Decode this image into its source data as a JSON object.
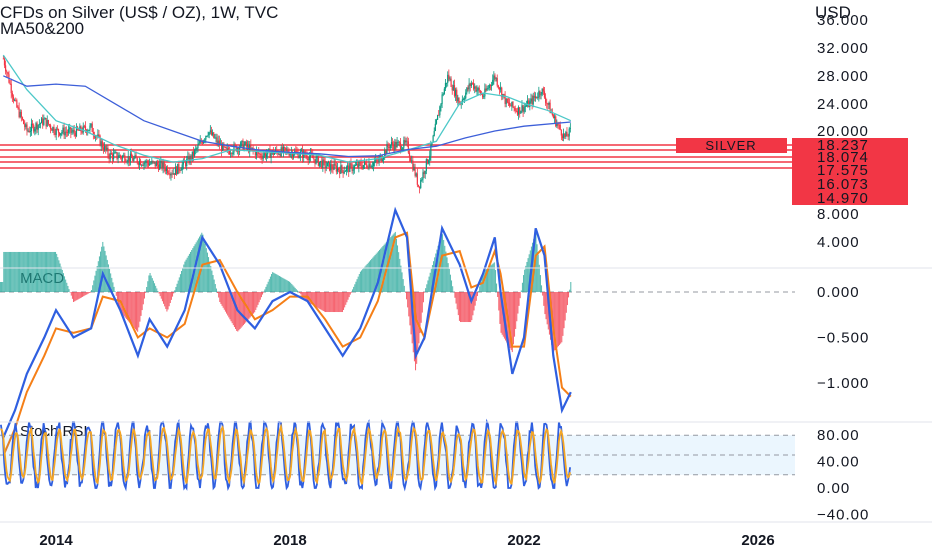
{
  "header": {
    "title": "CFDs on Silver (US$ / OZ), 1W, TVC",
    "indicator": "MA50&200",
    "currency": "USD"
  },
  "chart_data": {
    "type": "candlestick",
    "price_axis": {
      "ticks": [
        "36.000",
        "32.000",
        "28.000",
        "24.000",
        "20.000",
        "8.000",
        "4.000"
      ],
      "tick_values": [
        36,
        32,
        28,
        24,
        20,
        8,
        4
      ]
    },
    "time_axis": {
      "ticks": [
        "2014",
        "2018",
        "2022",
        "2026"
      ],
      "tick_values": [
        2014,
        2018,
        2022,
        2026
      ]
    },
    "series_label": "SILVER",
    "support_levels": [
      {
        "label": "18.237",
        "value": 18.237
      },
      {
        "label": "18.074",
        "value": 18.074
      },
      {
        "label": "17.575",
        "value": 17.575
      },
      {
        "label": "16.073",
        "value": 16.073
      },
      {
        "label": "14.970",
        "value": 14.97
      }
    ],
    "price_path": [
      [
        2013.1,
        30.5
      ],
      [
        2013.3,
        24.0
      ],
      [
        2013.5,
        20.0
      ],
      [
        2013.8,
        21.5
      ],
      [
        2014.0,
        20.0
      ],
      [
        2014.3,
        19.8
      ],
      [
        2014.6,
        20.5
      ],
      [
        2014.9,
        16.5
      ],
      [
        2015.2,
        16.2
      ],
      [
        2015.5,
        15.5
      ],
      [
        2015.8,
        15.0
      ],
      [
        2016.0,
        14.0
      ],
      [
        2016.3,
        16.0
      ],
      [
        2016.6,
        20.0
      ],
      [
        2016.9,
        17.0
      ],
      [
        2017.2,
        18.0
      ],
      [
        2017.5,
        16.5
      ],
      [
        2017.8,
        17.0
      ],
      [
        2018.0,
        17.0
      ],
      [
        2018.3,
        16.5
      ],
      [
        2018.6,
        15.0
      ],
      [
        2018.9,
        14.4
      ],
      [
        2019.2,
        15.0
      ],
      [
        2019.5,
        15.5
      ],
      [
        2019.7,
        18.0
      ],
      [
        2020.0,
        18.0
      ],
      [
        2020.2,
        12.0
      ],
      [
        2020.4,
        17.0
      ],
      [
        2020.6,
        25.0
      ],
      [
        2020.7,
        28.0
      ],
      [
        2020.9,
        24.0
      ],
      [
        2021.1,
        27.0
      ],
      [
        2021.3,
        25.0
      ],
      [
        2021.5,
        28.0
      ],
      [
        2021.7,
        24.0
      ],
      [
        2021.9,
        23.0
      ],
      [
        2022.1,
        24.0
      ],
      [
        2022.3,
        26.0
      ],
      [
        2022.5,
        22.0
      ],
      [
        2022.7,
        19.0
      ],
      [
        2022.8,
        20.0
      ]
    ],
    "ma50_path": [
      [
        2013.1,
        31.0
      ],
      [
        2013.5,
        26.0
      ],
      [
        2014.0,
        21.5
      ],
      [
        2014.5,
        20.0
      ],
      [
        2015.0,
        18.0
      ],
      [
        2015.5,
        16.5
      ],
      [
        2016.0,
        15.5
      ],
      [
        2016.5,
        16.0
      ],
      [
        2017.0,
        17.3
      ],
      [
        2017.5,
        17.0
      ],
      [
        2018.0,
        16.8
      ],
      [
        2018.5,
        16.5
      ],
      [
        2019.0,
        15.5
      ],
      [
        2019.5,
        16.0
      ],
      [
        2020.0,
        17.2
      ],
      [
        2020.5,
        18.5
      ],
      [
        2020.9,
        24.0
      ],
      [
        2021.3,
        25.5
      ],
      [
        2021.7,
        25.0
      ],
      [
        2022.0,
        24.0
      ],
      [
        2022.4,
        23.0
      ],
      [
        2022.8,
        21.5
      ]
    ],
    "ma200_path": [
      [
        2013.1,
        28.0
      ],
      [
        2013.5,
        26.5
      ],
      [
        2014.0,
        26.8
      ],
      [
        2014.5,
        26.5
      ],
      [
        2015.0,
        24.0
      ],
      [
        2015.5,
        21.5
      ],
      [
        2016.0,
        20.0
      ],
      [
        2016.5,
        18.5
      ],
      [
        2017.0,
        17.8
      ],
      [
        2017.5,
        17.2
      ],
      [
        2018.0,
        16.9
      ],
      [
        2018.5,
        16.7
      ],
      [
        2019.0,
        16.3
      ],
      [
        2019.5,
        16.4
      ],
      [
        2020.0,
        17.3
      ],
      [
        2020.5,
        17.8
      ],
      [
        2021.0,
        19.0
      ],
      [
        2021.5,
        20.0
      ],
      [
        2022.0,
        20.7
      ],
      [
        2022.8,
        21.3
      ]
    ],
    "macd": {
      "label": "MACD",
      "ticks": [
        "0.000",
        "−0.500",
        "−1.000"
      ],
      "tick_values": [
        0,
        -0.5,
        -1.0
      ],
      "macd_path": [
        [
          2013.1,
          -1.6
        ],
        [
          2013.3,
          -1.3
        ],
        [
          2013.5,
          -0.9
        ],
        [
          2013.8,
          -0.5
        ],
        [
          2014.0,
          -0.2
        ],
        [
          2014.3,
          -0.5
        ],
        [
          2014.6,
          -0.4
        ],
        [
          2014.8,
          0.2
        ],
        [
          2015.1,
          -0.2
        ],
        [
          2015.4,
          -0.7
        ],
        [
          2015.6,
          -0.3
        ],
        [
          2015.9,
          -0.6
        ],
        [
          2016.2,
          -0.2
        ],
        [
          2016.5,
          0.6
        ],
        [
          2016.8,
          0.3
        ],
        [
          2017.1,
          -0.2
        ],
        [
          2017.4,
          -0.4
        ],
        [
          2017.7,
          -0.1
        ],
        [
          2018.0,
          0.0
        ],
        [
          2018.3,
          -0.1
        ],
        [
          2018.6,
          -0.4
        ],
        [
          2018.9,
          -0.7
        ],
        [
          2019.2,
          -0.4
        ],
        [
          2019.5,
          0.1
        ],
        [
          2019.8,
          0.9
        ],
        [
          2020.0,
          0.6
        ],
        [
          2020.15,
          -0.7
        ],
        [
          2020.3,
          -0.5
        ],
        [
          2020.6,
          0.7
        ],
        [
          2020.9,
          0.3
        ],
        [
          2021.1,
          -0.1
        ],
        [
          2021.3,
          0.2
        ],
        [
          2021.5,
          0.6
        ],
        [
          2021.6,
          0.0
        ],
        [
          2021.8,
          -0.9
        ],
        [
          2022.0,
          -0.5
        ],
        [
          2022.2,
          0.7
        ],
        [
          2022.35,
          0.4
        ],
        [
          2022.5,
          -0.7
        ],
        [
          2022.65,
          -1.3
        ],
        [
          2022.8,
          -1.1
        ]
      ],
      "signal_path": [
        [
          2013.1,
          -1.8
        ],
        [
          2013.3,
          -1.5
        ],
        [
          2013.5,
          -1.1
        ],
        [
          2013.8,
          -0.7
        ],
        [
          2014.0,
          -0.4
        ],
        [
          2014.3,
          -0.45
        ],
        [
          2014.6,
          -0.4
        ],
        [
          2014.8,
          -0.05
        ],
        [
          2015.1,
          -0.1
        ],
        [
          2015.4,
          -0.5
        ],
        [
          2015.6,
          -0.4
        ],
        [
          2015.9,
          -0.5
        ],
        [
          2016.2,
          -0.35
        ],
        [
          2016.5,
          0.3
        ],
        [
          2016.8,
          0.35
        ],
        [
          2017.1,
          0.0
        ],
        [
          2017.4,
          -0.3
        ],
        [
          2017.7,
          -0.2
        ],
        [
          2018.0,
          -0.05
        ],
        [
          2018.3,
          -0.05
        ],
        [
          2018.6,
          -0.3
        ],
        [
          2018.9,
          -0.6
        ],
        [
          2019.2,
          -0.5
        ],
        [
          2019.5,
          -0.1
        ],
        [
          2019.8,
          0.6
        ],
        [
          2020.0,
          0.65
        ],
        [
          2020.15,
          -0.3
        ],
        [
          2020.3,
          -0.5
        ],
        [
          2020.6,
          0.4
        ],
        [
          2020.9,
          0.45
        ],
        [
          2021.1,
          0.05
        ],
        [
          2021.3,
          0.1
        ],
        [
          2021.5,
          0.45
        ],
        [
          2021.6,
          0.2
        ],
        [
          2021.8,
          -0.6
        ],
        [
          2022.0,
          -0.6
        ],
        [
          2022.2,
          0.4
        ],
        [
          2022.35,
          0.5
        ],
        [
          2022.5,
          -0.4
        ],
        [
          2022.65,
          -1.05
        ],
        [
          2022.8,
          -1.15
        ]
      ]
    },
    "stoch_rsi": {
      "label": "Stoch RSI",
      "ticks": [
        "80.00",
        "40.00",
        "0.00",
        "−40.00"
      ],
      "tick_values": [
        80,
        40,
        0,
        -40
      ],
      "band": [
        20,
        80
      ]
    }
  }
}
